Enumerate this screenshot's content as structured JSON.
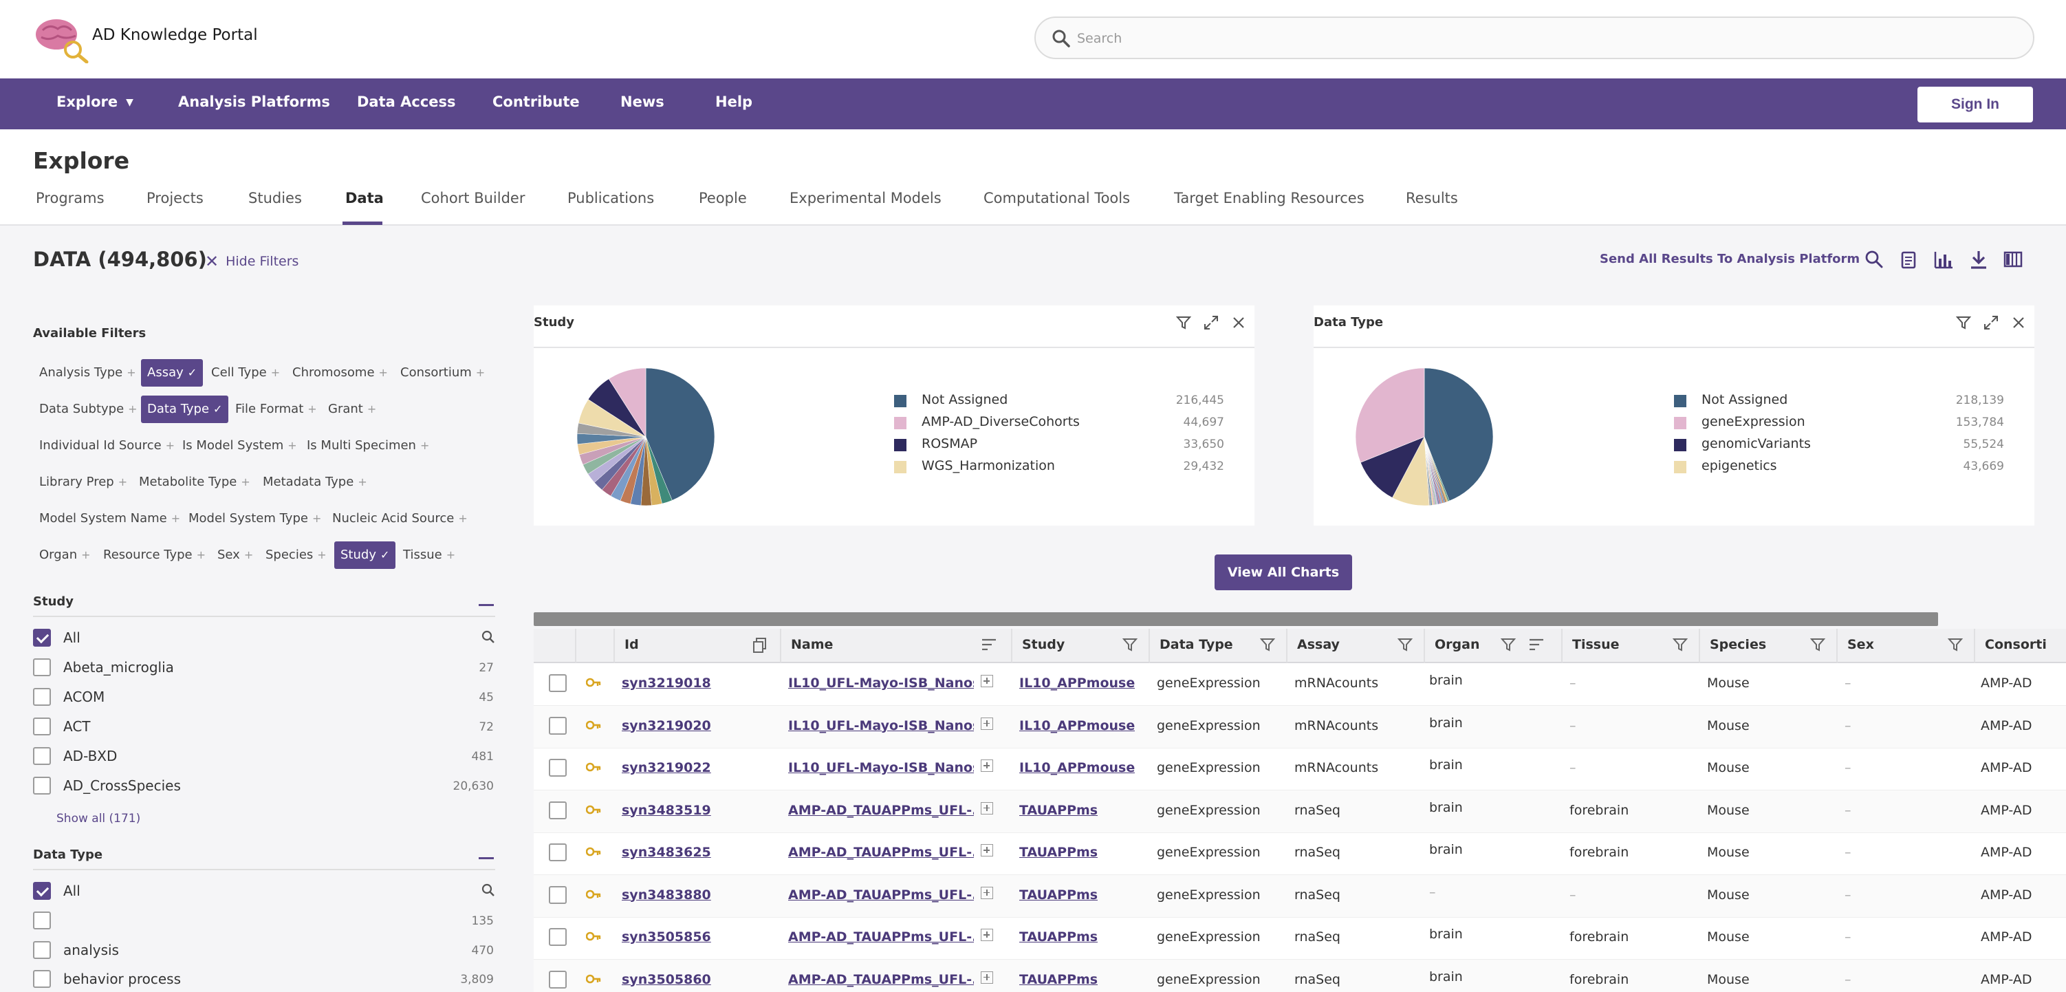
{
  "app": {
    "name": "AD Knowledge Portal"
  },
  "search": {
    "placeholder": "Search"
  },
  "nav": {
    "items": [
      "Explore",
      "Analysis Platforms",
      "Data Access",
      "Contribute",
      "News",
      "Help"
    ],
    "sign_in": "Sign In"
  },
  "page": {
    "title": "Explore"
  },
  "tabs": [
    "Programs",
    "Projects",
    "Studies",
    "Data",
    "Cohort Builder",
    "Publications",
    "People",
    "Experimental Models",
    "Computational Tools",
    "Target Enabling Resources",
    "Results"
  ],
  "active_tab": "Data",
  "toolbar": {
    "count_label": "DATA (494,806)",
    "hide_filters": "Hide Filters",
    "send_all": "Send All Results To Analysis Platform",
    "icons": [
      "search-icon",
      "clipboard-icon",
      "bar-chart-icon",
      "download-icon",
      "columns-icon"
    ]
  },
  "filters": {
    "heading": "Available Filters",
    "facets": [
      {
        "label": "Analysis Type",
        "selected": false
      },
      {
        "label": "Assay",
        "selected": true
      },
      {
        "label": "Cell Type",
        "selected": false
      },
      {
        "label": "Chromosome",
        "selected": false
      },
      {
        "label": "Consortium",
        "selected": false
      },
      {
        "label": "Data Subtype",
        "selected": false
      },
      {
        "label": "Data Type",
        "selected": true
      },
      {
        "label": "File Format",
        "selected": false
      },
      {
        "label": "Grant",
        "selected": false
      },
      {
        "label": "Individual Id Source",
        "selected": false
      },
      {
        "label": "Is Model System",
        "selected": false
      },
      {
        "label": "Is Multi Specimen",
        "selected": false
      },
      {
        "label": "Library Prep",
        "selected": false
      },
      {
        "label": "Metabolite Type",
        "selected": false
      },
      {
        "label": "Metadata Type",
        "selected": false
      },
      {
        "label": "Model System Name",
        "selected": false
      },
      {
        "label": "Model System Type",
        "selected": false
      },
      {
        "label": "Nucleic Acid Source",
        "selected": false
      },
      {
        "label": "Organ",
        "selected": false
      },
      {
        "label": "Resource Type",
        "selected": false
      },
      {
        "label": "Sex",
        "selected": false
      },
      {
        "label": "Species",
        "selected": false
      },
      {
        "label": "Study",
        "selected": true
      },
      {
        "label": "Tissue",
        "selected": false
      }
    ],
    "study_group": {
      "title": "Study",
      "options": [
        {
          "label": "All",
          "count": "",
          "checked": true
        },
        {
          "label": "Abeta_microglia",
          "count": "27",
          "checked": false
        },
        {
          "label": "ACOM",
          "count": "45",
          "checked": false
        },
        {
          "label": "ACT",
          "count": "72",
          "checked": false
        },
        {
          "label": "AD-BXD",
          "count": "481",
          "checked": false
        },
        {
          "label": "AD_CrossSpecies",
          "count": "20,630",
          "checked": false
        }
      ],
      "show_all": "Show all (171)"
    },
    "datatype_group": {
      "title": "Data Type",
      "options": [
        {
          "label": "All",
          "count": "",
          "checked": true
        },
        {
          "label": "",
          "count": "135",
          "checked": false
        },
        {
          "label": "analysis",
          "count": "470",
          "checked": false
        },
        {
          "label": "behavior process",
          "count": "3,809",
          "checked": false
        }
      ]
    }
  },
  "charts": {
    "study": {
      "title": "Study",
      "legend": [
        {
          "label": "Not Assigned",
          "value": "216,445",
          "color": "#3d5f7e"
        },
        {
          "label": "AMP-AD_DiverseCohorts",
          "value": "44,697",
          "color": "#e2b6cf"
        },
        {
          "label": "ROSMAP",
          "value": "33,650",
          "color": "#2e2a5e"
        },
        {
          "label": "WGS_Harmonization",
          "value": "29,432",
          "color": "#eedcac"
        }
      ]
    },
    "datatype": {
      "title": "Data Type",
      "legend": [
        {
          "label": "Not Assigned",
          "value": "218,139",
          "color": "#3d5f7e"
        },
        {
          "label": "geneExpression",
          "value": "153,784",
          "color": "#e2b6cf"
        },
        {
          "label": "genomicVariants",
          "value": "55,524",
          "color": "#2e2a5e"
        },
        {
          "label": "epigenetics",
          "value": "43,669",
          "color": "#eedcac"
        }
      ]
    },
    "view_all": "View All Charts"
  },
  "chart_data": [
    {
      "type": "pie",
      "title": "Study",
      "categories": [
        "Not Assigned",
        "AMP-AD_DiverseCohorts",
        "ROSMAP",
        "WGS_Harmonization"
      ],
      "values": [
        216445,
        44697,
        33650,
        29432
      ],
      "total": 494806
    },
    {
      "type": "pie",
      "title": "Data Type",
      "categories": [
        "Not Assigned",
        "geneExpression",
        "genomicVariants",
        "epigenetics"
      ],
      "values": [
        218139,
        153784,
        55524,
        43669
      ],
      "total": 494806
    }
  ],
  "table": {
    "columns": [
      "Id",
      "Name",
      "Study",
      "Data Type",
      "Assay",
      "Organ",
      "Tissue",
      "Species",
      "Sex",
      "Consorti"
    ],
    "rows": [
      {
        "id": "syn3219018",
        "name": "IL10_UFL-Mayo-ISB_Nanos...",
        "study": "IL10_APPmouse",
        "data_type": "geneExpression",
        "assay": "mRNAcounts",
        "organ": "brain",
        "tissue": "–",
        "species": "Mouse",
        "sex": "–",
        "consortium": "AMP-AD"
      },
      {
        "id": "syn3219020",
        "name": "IL10_UFL-Mayo-ISB_Nanos...",
        "study": "IL10_APPmouse",
        "data_type": "geneExpression",
        "assay": "mRNAcounts",
        "organ": "brain",
        "tissue": "–",
        "species": "Mouse",
        "sex": "–",
        "consortium": "AMP-AD"
      },
      {
        "id": "syn3219022",
        "name": "IL10_UFL-Mayo-ISB_Nanos...",
        "study": "IL10_APPmouse",
        "data_type": "geneExpression",
        "assay": "mRNAcounts",
        "organ": "brain",
        "tissue": "–",
        "species": "Mouse",
        "sex": "–",
        "consortium": "AMP-AD"
      },
      {
        "id": "syn3483519",
        "name": "AMP-AD_TAUAPPms_UFL-...",
        "study": "TAUAPPms",
        "data_type": "geneExpression",
        "assay": "rnaSeq",
        "organ": "brain",
        "tissue": "forebrain",
        "species": "Mouse",
        "sex": "–",
        "consortium": "AMP-AD"
      },
      {
        "id": "syn3483625",
        "name": "AMP-AD_TAUAPPms_UFL-...",
        "study": "TAUAPPms",
        "data_type": "geneExpression",
        "assay": "rnaSeq",
        "organ": "brain",
        "tissue": "forebrain",
        "species": "Mouse",
        "sex": "–",
        "consortium": "AMP-AD"
      },
      {
        "id": "syn3483880",
        "name": "AMP-AD_TAUAPPms_UFL-...",
        "study": "TAUAPPms",
        "data_type": "geneExpression",
        "assay": "rnaSeq",
        "organ": "–",
        "tissue": "–",
        "species": "Mouse",
        "sex": "–",
        "consortium": "AMP-AD"
      },
      {
        "id": "syn3505856",
        "name": "AMP-AD_TAUAPPms_UFL-...",
        "study": "TAUAPPms",
        "data_type": "geneExpression",
        "assay": "rnaSeq",
        "organ": "brain",
        "tissue": "forebrain",
        "species": "Mouse",
        "sex": "–",
        "consortium": "AMP-AD"
      },
      {
        "id": "syn3505860",
        "name": "AMP-AD_TAUAPPms_UFL-...",
        "study": "TAUAPPms",
        "data_type": "geneExpression",
        "assay": "rnaSeq",
        "organ": "brain",
        "tissue": "forebrain",
        "species": "Mouse",
        "sex": "–",
        "consortium": "AMP-AD"
      }
    ]
  }
}
